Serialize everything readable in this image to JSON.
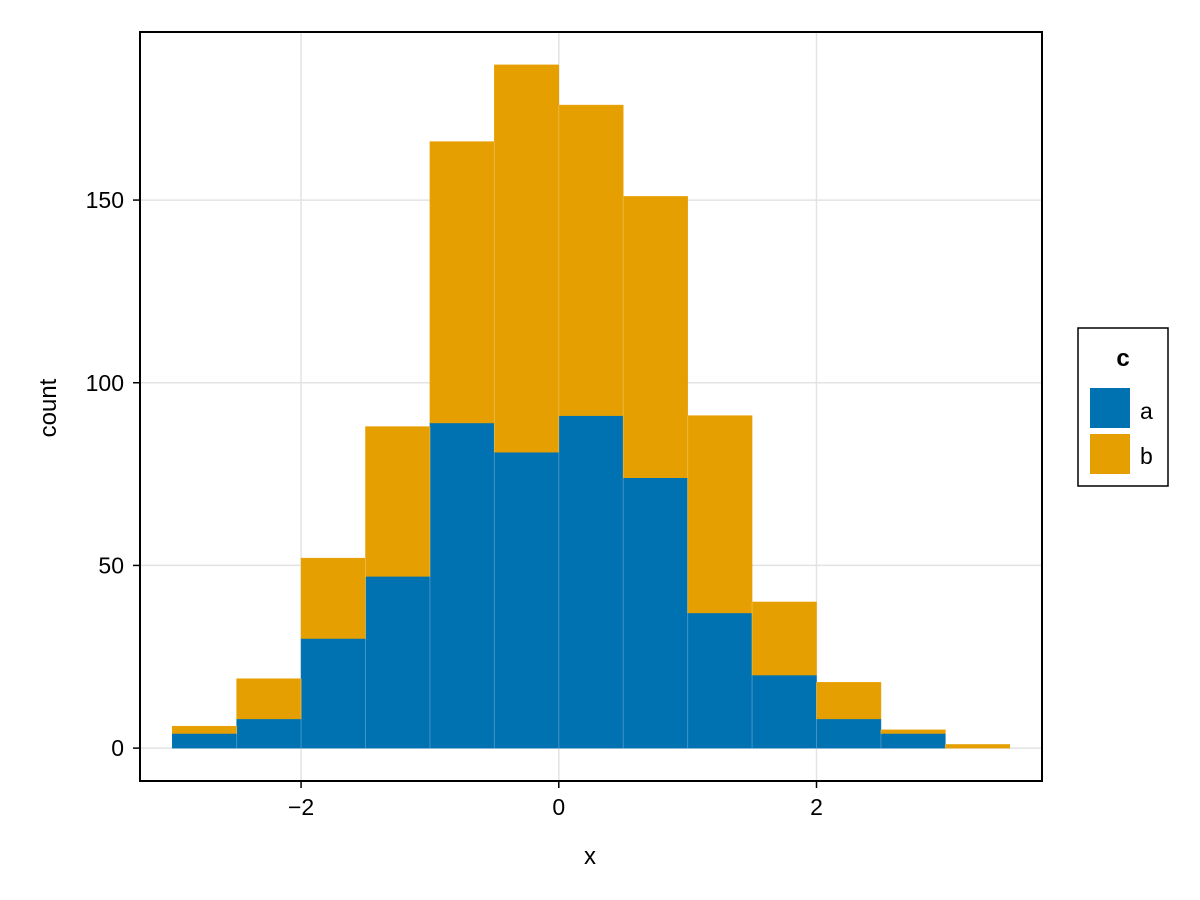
{
  "chart_data": {
    "type": "bar",
    "stacked": true,
    "histogram": true,
    "bin_edges": [
      -3.0,
      -2.5,
      -2.0,
      -1.5,
      -1.0,
      -0.5,
      0.0,
      0.5,
      1.0,
      1.5,
      2.0,
      2.5,
      3.0,
      3.5
    ],
    "series": [
      {
        "name": "a",
        "color": "#0072B2",
        "values": [
          4,
          8,
          30,
          47,
          89,
          81,
          91,
          74,
          37,
          20,
          8,
          4,
          0
        ]
      },
      {
        "name": "b",
        "color": "#E69F00",
        "values": [
          2,
          11,
          22,
          41,
          77,
          106,
          85,
          77,
          54,
          20,
          10,
          1,
          1
        ]
      }
    ],
    "xlabel": "x",
    "ylabel": "count",
    "xlim": [
      -3.25,
      3.75
    ],
    "ylim": [
      -9,
      196
    ],
    "xticks": [
      -2,
      0,
      2
    ],
    "xtick_labels": [
      "−2",
      "0",
      "2"
    ],
    "yticks": [
      0,
      50,
      100,
      150
    ],
    "ytick_labels": [
      "0",
      "50",
      "100",
      "150"
    ],
    "grid": true,
    "legend": {
      "title": "c",
      "position": "right",
      "entries": [
        "a",
        "b"
      ]
    }
  }
}
